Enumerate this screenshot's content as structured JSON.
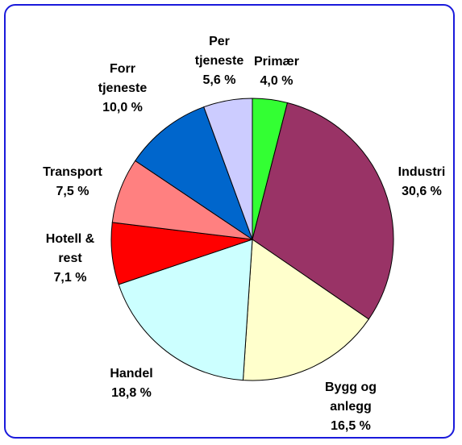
{
  "chart_data": {
    "type": "pie",
    "categories": [
      "Primær",
      "Industri",
      "Bygg og anlegg",
      "Handel",
      "Hotell & rest",
      "Transport",
      "Forr tjeneste",
      "Per tjeneste"
    ],
    "values": [
      4.0,
      30.6,
      16.5,
      18.8,
      7.1,
      7.5,
      10.0,
      5.6
    ],
    "value_labels": [
      "4,0 %",
      "30,6 %",
      "16,5 %",
      "18,8 %",
      "7,1 %",
      "7,5 %",
      "10,0 %",
      "5,6 %"
    ],
    "colors": [
      "#33ff33",
      "#993366",
      "#ffffcc",
      "#ccffff",
      "#ff0000",
      "#ff8080",
      "#0066cc",
      "#ccccff"
    ]
  }
}
